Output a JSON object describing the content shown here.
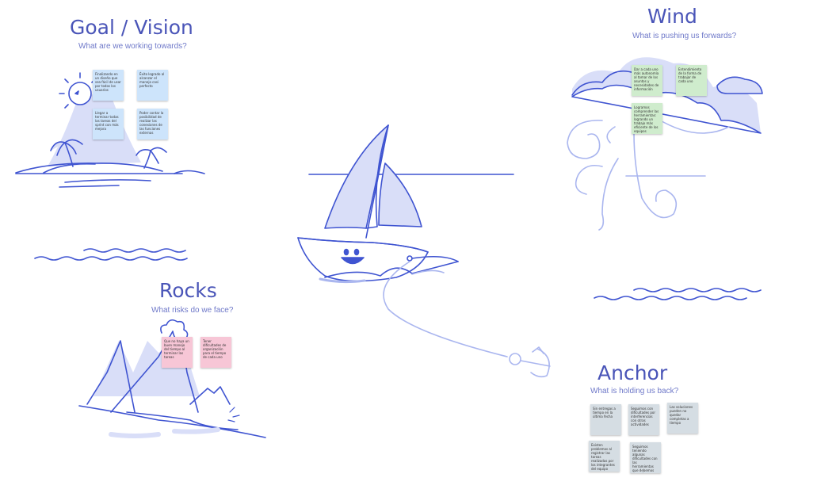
{
  "sections": {
    "goal": {
      "title": "Goal / Vision",
      "subtitle": "What are we working towards?"
    },
    "wind": {
      "title": "Wind",
      "subtitle": "What is pushing us forwards?"
    },
    "rocks": {
      "title": "Rocks",
      "subtitle": "What risks do we face?"
    },
    "anchor": {
      "title": "Anchor",
      "subtitle": "What is holding us back?"
    }
  },
  "colors": {
    "ink": "#3f54d1",
    "ink_light": "#aab6ef",
    "fill_light": "#d9def8",
    "title": "#4a55b8",
    "note_blue": "#cde4fb",
    "note_green": "#cfeccd",
    "note_pink": "#f7c6d6",
    "note_grey": "#d5dde3"
  },
  "notes": {
    "goal": [
      "Finalizando en un diseño que sea fácil de usar por todos los usuarios",
      "Éxito logrado al alcanzar el manejo casi perfecto",
      "Llegar a terminar todas las tareas del sprint con más mejora",
      "Poder contar la posibilidad de realizar las conexiones de las funciones externas"
    ],
    "wind": [
      "Dar a cada uno más autonomía al tomar de los asuntos y necesidades de información",
      "Entendimiento de la forma de trabajar de cada uno",
      "Logramos comprender las herramientas: logrando un trabajo más eficiente de los equipos"
    ],
    "rocks": [
      "Que no haya un buen manejo del tiempo al terminar las tareas",
      "Tener dificultades de organización para el tiempo de cada uno"
    ],
    "anchor": [
      "Sin entregas a tiempo en la última fecha",
      "Seguimos con dificultades por interferencias con otras actividades",
      "Las soluciones pueden no quedar completas a tiempo",
      "Existen problemas al registrar las tareas realizadas por los integrantes del equipo",
      "Seguimos teniendo algunas dificultades con las herramientas que debemos aprender a utilizar"
    ]
  }
}
